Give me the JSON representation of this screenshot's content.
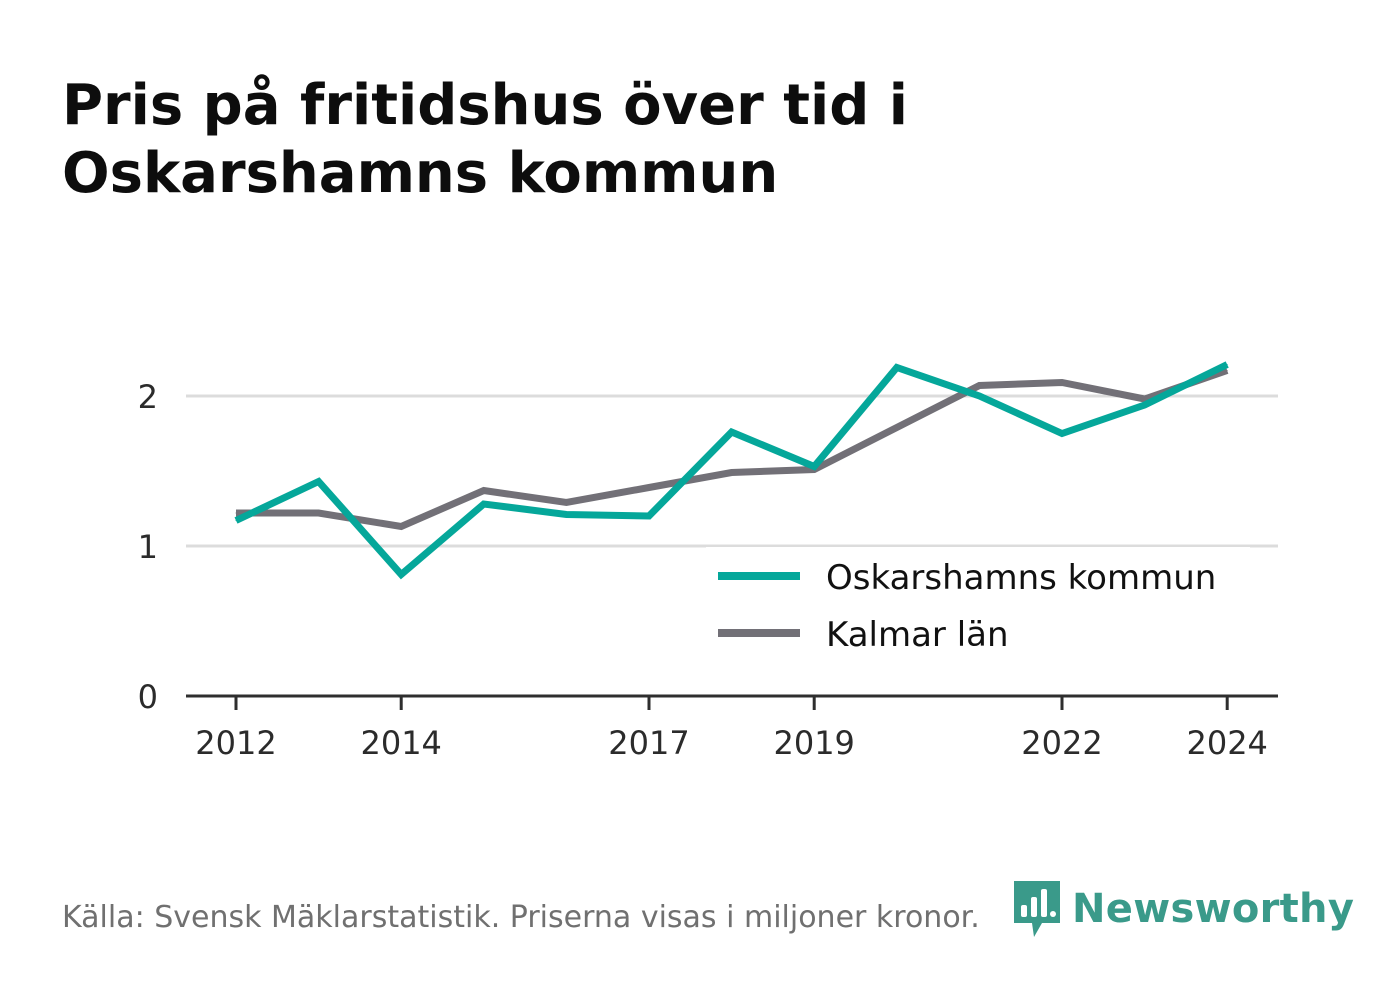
{
  "title": "Pris på fritidshus över tid i Oskarshamns kommun",
  "footer": "Källa: Svensk Mäklarstatistik. Priserna visas i miljoner kronor.",
  "brand": {
    "name": "Newsworthy",
    "icon": "newsworthy-logo-icon",
    "color": "#3a9a8a"
  },
  "chart_data": {
    "type": "line",
    "title": "Pris på fritidshus över tid i Oskarshamns kommun",
    "xlabel": "",
    "ylabel": "",
    "x": [
      2012,
      2013,
      2014,
      2015,
      2016,
      2017,
      2018,
      2019,
      2020,
      2021,
      2022,
      2023,
      2024
    ],
    "x_ticks": [
      "2012",
      "2014",
      "2017",
      "2019",
      "2022",
      "2024"
    ],
    "x_tick_values": [
      2012,
      2014,
      2017,
      2019,
      2022,
      2024
    ],
    "y_ticks": [
      "0",
      "1",
      "2"
    ],
    "y_tick_values": [
      0,
      1,
      2
    ],
    "ylim": [
      0,
      2.3
    ],
    "grid": true,
    "legend_position": "bottom-right",
    "series": [
      {
        "name": "Oskarshamns kommun",
        "color": "#05a79a",
        "values": [
          1.17,
          1.43,
          0.81,
          1.28,
          1.21,
          1.2,
          1.76,
          1.53,
          2.19,
          2.0,
          1.75,
          1.94,
          2.21
        ]
      },
      {
        "name": "Kalmar län",
        "color": "#727077",
        "values": [
          1.22,
          1.22,
          1.13,
          1.37,
          1.29,
          1.39,
          1.49,
          1.51,
          1.79,
          2.07,
          2.09,
          1.98,
          2.17
        ]
      }
    ]
  }
}
